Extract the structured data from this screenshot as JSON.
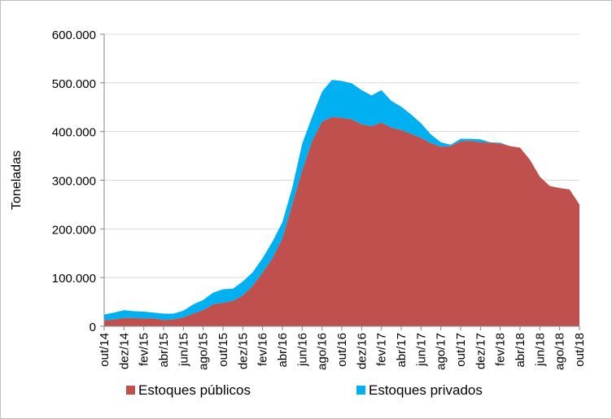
{
  "chart_data": {
    "type": "area",
    "stacked": true,
    "title": "",
    "xlabel": "",
    "ylabel": "Toneladas",
    "ylim": [
      0,
      600000
    ],
    "yticks": [
      "0",
      "100.000",
      "200.000",
      "300.000",
      "400.000",
      "500.000",
      "600.000"
    ],
    "ytick_values": [
      0,
      100000,
      200000,
      300000,
      400000,
      500000,
      600000
    ],
    "grid": true,
    "legend_position": "bottom",
    "x": [
      "out/14",
      "nov/14",
      "dez/14",
      "jan/15",
      "fev/15",
      "mar/15",
      "abr/15",
      "mai/15",
      "jun/15",
      "jul/15",
      "ago/15",
      "set/15",
      "out/15",
      "nov/15",
      "dez/15",
      "jan/16",
      "fev/16",
      "mar/16",
      "abr/16",
      "mai/16",
      "jun/16",
      "jul/16",
      "ago/16",
      "set/16",
      "out/16",
      "nov/16",
      "dez/16",
      "jan/17",
      "fev/17",
      "mar/17",
      "abr/17",
      "mai/17",
      "jun/17",
      "jul/17",
      "ago/17",
      "set/17",
      "out/17",
      "nov/17",
      "dez/17",
      "jan/18",
      "fev/18",
      "mar/18",
      "abr/18",
      "mai/18",
      "jun/18",
      "jul/18",
      "ago/18",
      "set/18",
      "out/18"
    ],
    "x_tick_labels": [
      "out/14",
      "dez/14",
      "fev/15",
      "abr/15",
      "jun/15",
      "ago/15",
      "out/15",
      "dez/15",
      "fev/16",
      "abr/16",
      "jun/16",
      "ago/16",
      "out/16",
      "dez/16",
      "fev/17",
      "abr/17",
      "jun/17",
      "ago/17",
      "out/17",
      "dez/17",
      "fev/18",
      "abr/18",
      "jun/18",
      "ago/18",
      "out/18"
    ],
    "series": [
      {
        "name": "Estoques públicos",
        "color": "#c0504d",
        "values": [
          12000,
          14000,
          17000,
          17000,
          16000,
          16000,
          13000,
          14000,
          18000,
          26000,
          33000,
          45000,
          48000,
          52000,
          63000,
          83000,
          110000,
          140000,
          180000,
          250000,
          320000,
          380000,
          420000,
          430000,
          428000,
          425000,
          415000,
          411000,
          418000,
          408000,
          403000,
          395000,
          387000,
          376000,
          369000,
          370000,
          380000,
          381000,
          378000,
          377000,
          375000,
          370000,
          367000,
          342000,
          307000,
          288000,
          284000,
          281000,
          250000
        ]
      },
      {
        "name": "Estoques privados",
        "color": "#00b0f0",
        "values": [
          12000,
          14000,
          16000,
          14000,
          14000,
          12000,
          13000,
          12000,
          14000,
          19000,
          21000,
          24000,
          28000,
          25000,
          29000,
          28000,
          30000,
          34000,
          34000,
          35000,
          55000,
          50000,
          62000,
          76000,
          76000,
          74000,
          70000,
          63000,
          67000,
          55000,
          48000,
          40000,
          30000,
          18000,
          9000,
          3000,
          5000,
          4000,
          6000,
          1000,
          2000,
          0,
          0,
          0,
          0,
          0,
          0,
          0,
          0
        ]
      }
    ]
  }
}
